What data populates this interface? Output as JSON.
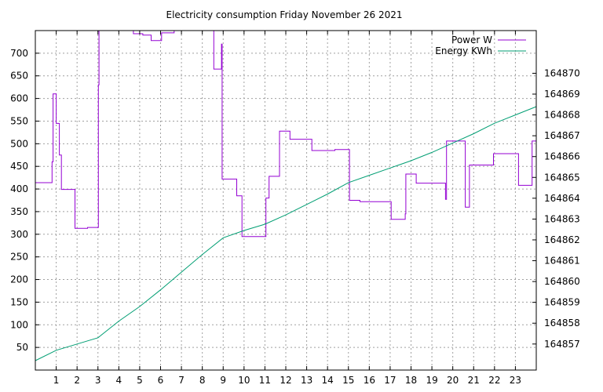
{
  "chart_data": {
    "type": "line",
    "title": "Electricity consumption Friday November 26 2021",
    "xlabel": "",
    "ylabel": "",
    "y2label": "",
    "xlim": [
      0,
      24
    ],
    "ylim": [
      0,
      750
    ],
    "y2lim": [
      164855.75,
      164872.05
    ],
    "x_ticks": [
      1,
      2,
      3,
      4,
      5,
      6,
      7,
      8,
      9,
      10,
      11,
      12,
      13,
      14,
      15,
      16,
      17,
      18,
      19,
      20,
      21,
      22,
      23
    ],
    "y_ticks": [
      50,
      100,
      150,
      200,
      250,
      300,
      350,
      400,
      450,
      500,
      550,
      600,
      650,
      700
    ],
    "y2_ticks": [
      164857,
      164858,
      164859,
      164860,
      164861,
      164862,
      164863,
      164864,
      164865,
      164866,
      164867,
      164868,
      164869,
      164870
    ],
    "grid": true,
    "legend_position": "top-right",
    "series": [
      {
        "name": "Power W",
        "axis": "left",
        "color": "#9400d3",
        "step": true,
        "points": [
          [
            0,
            414
          ],
          [
            0.78,
            414
          ],
          [
            0.8,
            460
          ],
          [
            0.85,
            610
          ],
          [
            0.98,
            610
          ],
          [
            1.0,
            545
          ],
          [
            1.12,
            545
          ],
          [
            1.15,
            475
          ],
          [
            1.25,
            399
          ],
          [
            1.85,
            399
          ],
          [
            1.9,
            313
          ],
          [
            2.45,
            313
          ],
          [
            2.5,
            315
          ],
          [
            3.0,
            315
          ],
          [
            3.02,
            630
          ],
          [
            3.05,
            750
          ],
          [
            4.6,
            750
          ],
          [
            4.7,
            743
          ],
          [
            5.1,
            743
          ],
          [
            5.15,
            740
          ],
          [
            5.5,
            740
          ],
          [
            5.55,
            728
          ],
          [
            6.0,
            728
          ],
          [
            6.05,
            745
          ],
          [
            6.6,
            745
          ],
          [
            6.65,
            750
          ],
          [
            8.5,
            750
          ],
          [
            8.55,
            665
          ],
          [
            8.9,
            665
          ],
          [
            8.92,
            720
          ],
          [
            8.95,
            422
          ],
          [
            9.6,
            422
          ],
          [
            9.65,
            385
          ],
          [
            9.85,
            385
          ],
          [
            9.9,
            295
          ],
          [
            11.0,
            295
          ],
          [
            11.05,
            380
          ],
          [
            11.15,
            380
          ],
          [
            11.2,
            428
          ],
          [
            11.65,
            428
          ],
          [
            11.7,
            528
          ],
          [
            12.15,
            528
          ],
          [
            12.2,
            510
          ],
          [
            13.2,
            510
          ],
          [
            13.25,
            485
          ],
          [
            14.3,
            485
          ],
          [
            14.35,
            487
          ],
          [
            15.0,
            487
          ],
          [
            15.05,
            375
          ],
          [
            15.5,
            375
          ],
          [
            15.55,
            372
          ],
          [
            17.0,
            372
          ],
          [
            17.05,
            333
          ],
          [
            17.7,
            333
          ],
          [
            17.72,
            345
          ],
          [
            17.75,
            433
          ],
          [
            18.2,
            433
          ],
          [
            18.25,
            413
          ],
          [
            19.6,
            413
          ],
          [
            19.65,
            377
          ],
          [
            19.7,
            506
          ],
          [
            20.55,
            506
          ],
          [
            20.6,
            360
          ],
          [
            20.7,
            360
          ],
          [
            20.8,
            453
          ],
          [
            21.9,
            453
          ],
          [
            21.95,
            478
          ],
          [
            23.1,
            478
          ],
          [
            23.15,
            408
          ],
          [
            23.75,
            408
          ],
          [
            23.8,
            506
          ],
          [
            24,
            506
          ]
        ]
      },
      {
        "name": "Energy KWh",
        "axis": "right",
        "color": "#009e73",
        "step": false,
        "points": [
          [
            0,
            164856.2
          ],
          [
            1,
            164856.7
          ],
          [
            2,
            164857.0
          ],
          [
            3,
            164857.3
          ],
          [
            4,
            164858.1
          ],
          [
            5,
            164858.8
          ],
          [
            6,
            164859.6
          ],
          [
            7,
            164860.45
          ],
          [
            8,
            164861.3
          ],
          [
            9,
            164862.1
          ],
          [
            10,
            164862.45
          ],
          [
            11,
            164862.75
          ],
          [
            12,
            164863.2
          ],
          [
            13,
            164863.7
          ],
          [
            14,
            164864.2
          ],
          [
            15,
            164864.75
          ],
          [
            16,
            164865.1
          ],
          [
            17,
            164865.45
          ],
          [
            18,
            164865.8
          ],
          [
            19,
            164866.2
          ],
          [
            20,
            164866.65
          ],
          [
            21,
            164867.1
          ],
          [
            22,
            164867.6
          ],
          [
            23,
            164868.0
          ],
          [
            24,
            164868.4
          ]
        ]
      }
    ]
  }
}
